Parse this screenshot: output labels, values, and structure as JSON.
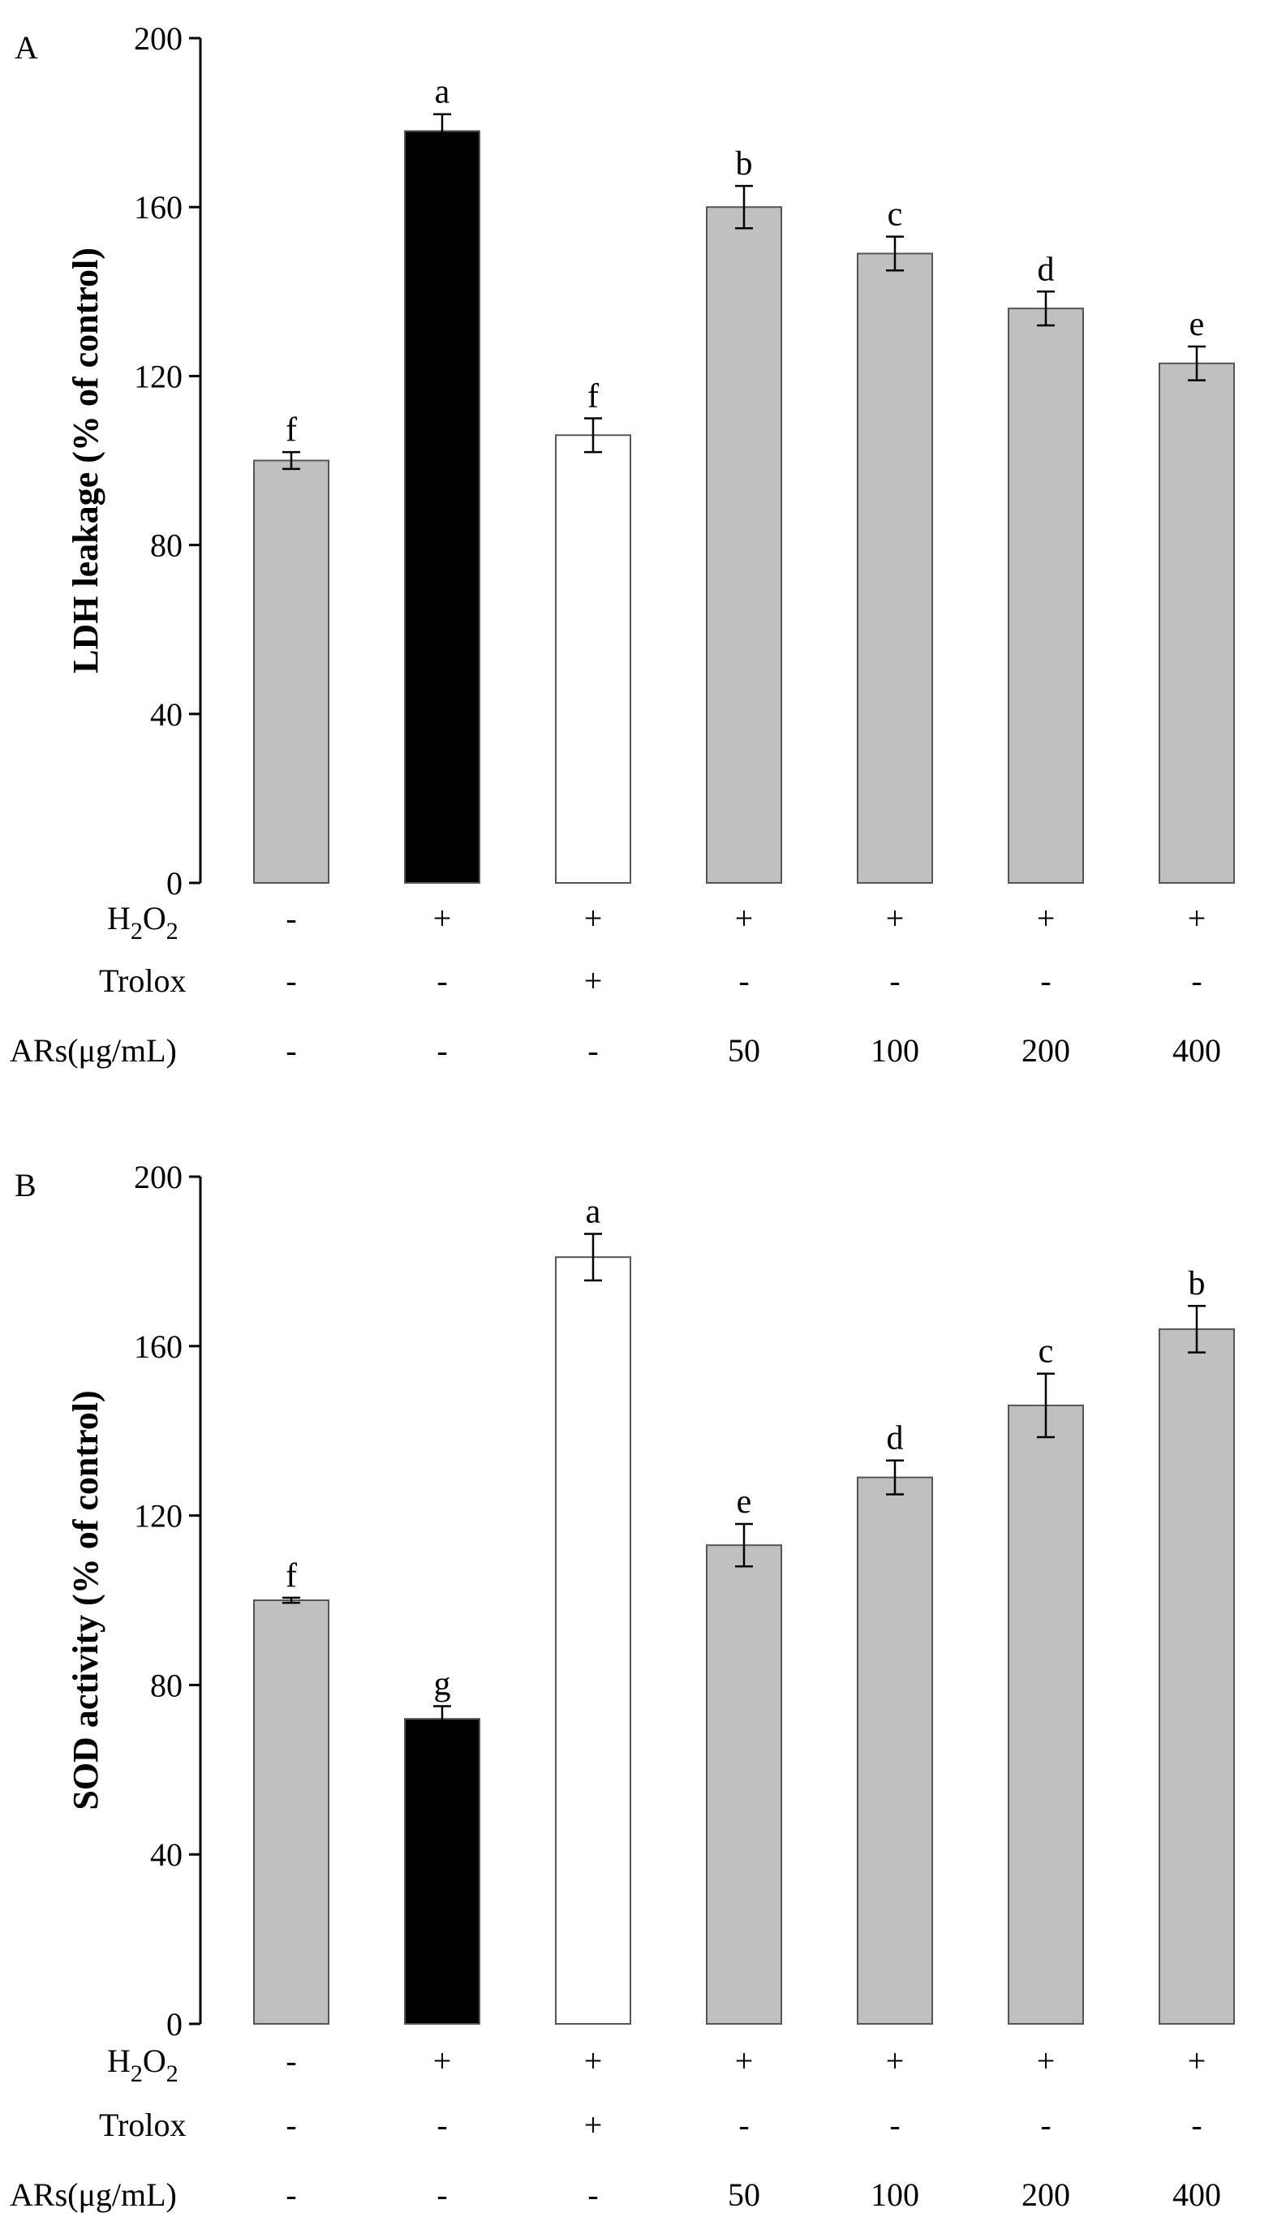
{
  "chart_data": [
    {
      "type": "bar",
      "panel": "A",
      "ylabel": "LDH leakage (% of control)",
      "ylim": [
        0,
        200
      ],
      "yticks": [
        "0",
        "40",
        "80",
        "120",
        "160",
        "200"
      ],
      "values": [
        100,
        178,
        106,
        160,
        149,
        136,
        123
      ],
      "errors": [
        2,
        4,
        4,
        5,
        4,
        4,
        4
      ],
      "significance": [
        "f",
        "a",
        "f",
        "b",
        "c",
        "d",
        "e"
      ],
      "bar_colors": [
        "#c0c0c0",
        "#000000",
        "#ffffff",
        "#c0c0c0",
        "#c0c0c0",
        "#c0c0c0",
        "#c0c0c0"
      ],
      "conditions": [
        {
          "label": "H2O2",
          "label_main": "H",
          "label_sub1": "2",
          "label_mid": "O",
          "label_sub2": "2",
          "values": [
            "-",
            "+",
            "+",
            "+",
            "+",
            "+",
            "+"
          ]
        },
        {
          "label": "Trolox",
          "values": [
            "-",
            "-",
            "+",
            "-",
            "-",
            "-",
            "-"
          ]
        },
        {
          "label": "ARs(μg/mL)",
          "values": [
            "-",
            "-",
            "-",
            "50",
            "100",
            "200",
            "400"
          ]
        }
      ],
      "grid": false,
      "legend": "none"
    },
    {
      "type": "bar",
      "panel": "B",
      "ylabel": "SOD activity (% of control)",
      "ylim": [
        0,
        200
      ],
      "yticks": [
        "0",
        "40",
        "80",
        "120",
        "160",
        "200"
      ],
      "values": [
        100,
        72,
        181,
        113,
        129,
        146,
        164
      ],
      "errors": [
        0.6,
        3,
        5.5,
        5,
        4,
        7.5,
        5.5
      ],
      "significance": [
        "f",
        "g",
        "a",
        "e",
        "d",
        "c",
        "b"
      ],
      "bar_colors": [
        "#c0c0c0",
        "#000000",
        "#ffffff",
        "#c0c0c0",
        "#c0c0c0",
        "#c0c0c0",
        "#c0c0c0"
      ],
      "conditions": [
        {
          "label": "H2O2",
          "label_main": "H",
          "label_sub1": "2",
          "label_mid": "O",
          "label_sub2": "2",
          "values": [
            "-",
            "+",
            "+",
            "+",
            "+",
            "+",
            "+"
          ]
        },
        {
          "label": "Trolox",
          "values": [
            "-",
            "-",
            "+",
            "-",
            "-",
            "-",
            "-"
          ]
        },
        {
          "label": "ARs(μg/mL)",
          "values": [
            "-",
            "-",
            "-",
            "50",
            "100",
            "200",
            "400"
          ]
        }
      ],
      "grid": false,
      "legend": "none"
    }
  ]
}
